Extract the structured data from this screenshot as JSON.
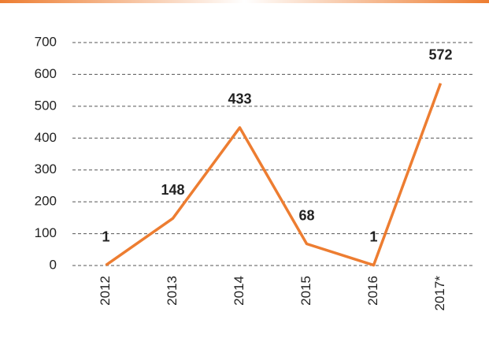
{
  "chart_data": {
    "type": "line",
    "categories": [
      "2012",
      "2013",
      "2014",
      "2015",
      "2016",
      "2017*"
    ],
    "values": [
      1,
      148,
      433,
      68,
      1,
      572
    ],
    "color": "#ed7d31",
    "ylim": [
      0,
      700
    ],
    "yticks": [
      0,
      100,
      200,
      300,
      400,
      500,
      600,
      700
    ],
    "grid": true
  }
}
